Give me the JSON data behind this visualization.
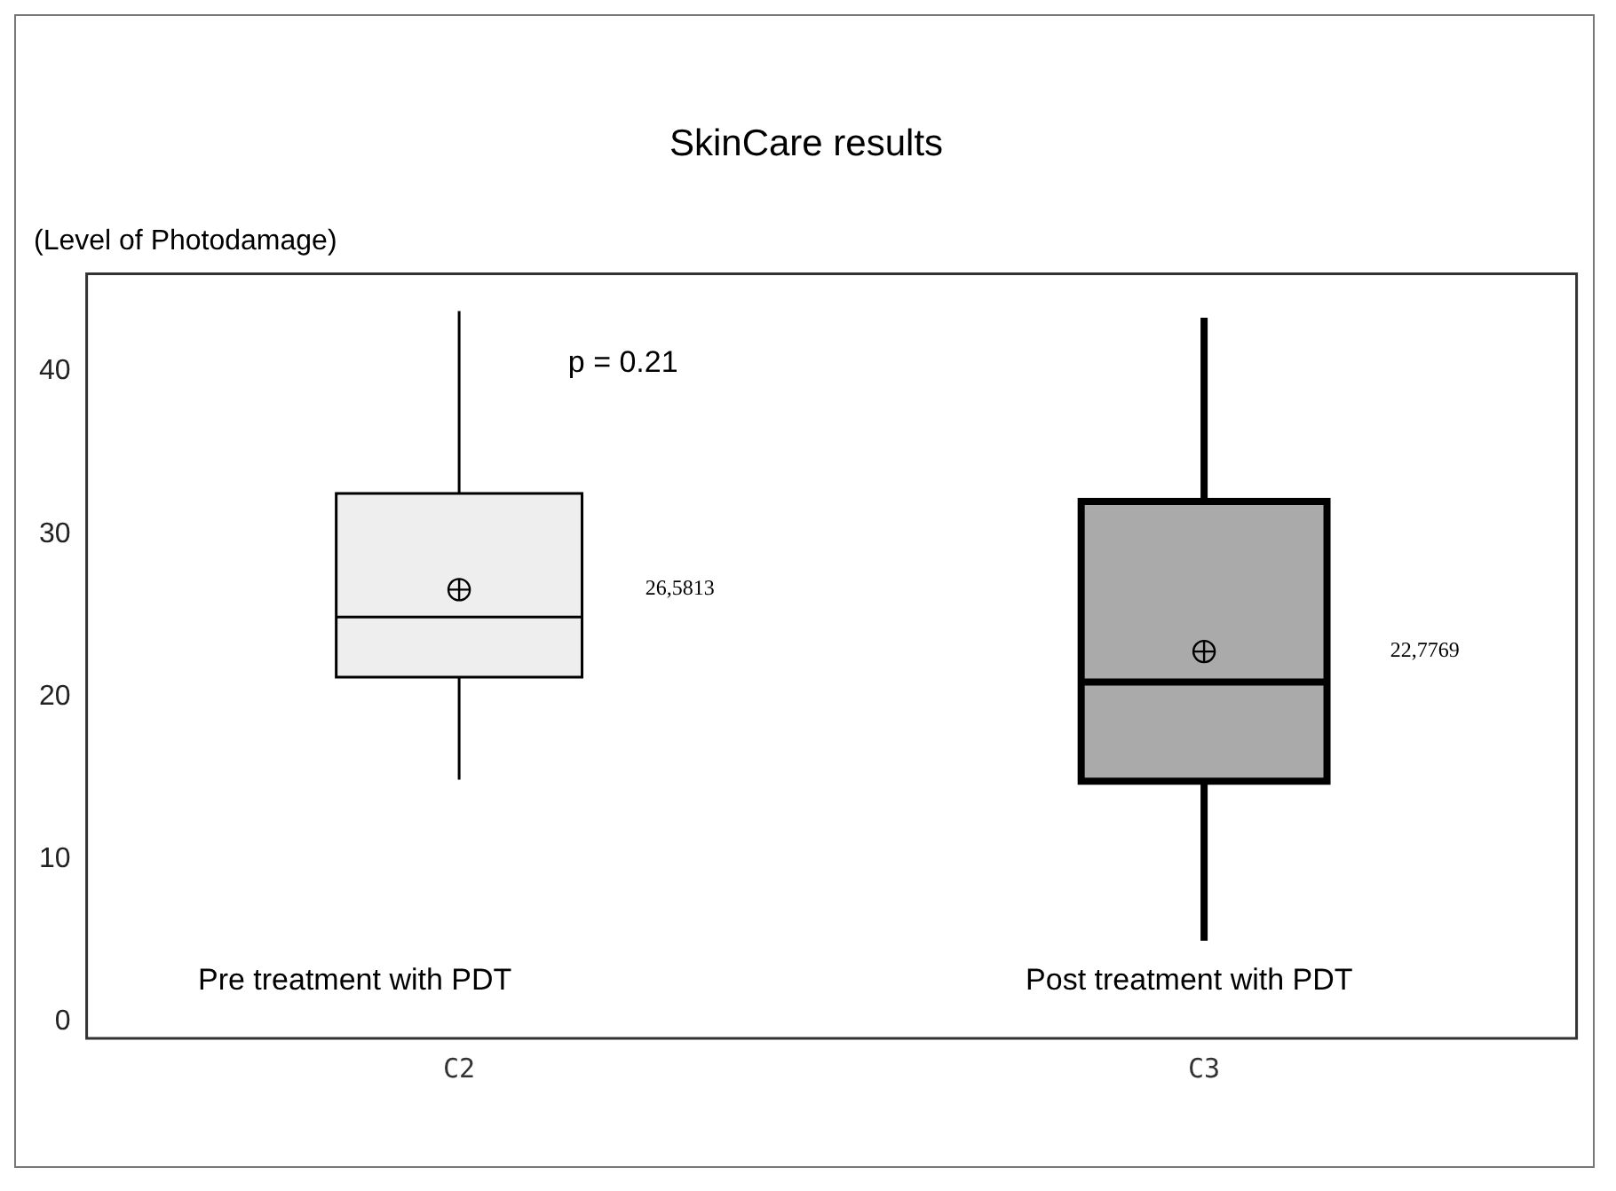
{
  "chart_data": {
    "type": "box",
    "title": "SkinCare results",
    "ylabel": "(Level of Photodamage)",
    "categories": [
      "C2",
      "C3"
    ],
    "boxes": [
      {
        "low": 14.9,
        "q1": 21.2,
        "median": 24.9,
        "q3": 32.5,
        "high": 43.7,
        "mean": 26.5813
      },
      {
        "low": 5.0,
        "q1": 14.8,
        "median": 20.9,
        "q3": 32.0,
        "high": 43.3,
        "mean": 22.7769
      }
    ],
    "colors": [
      "#eeeeee",
      "#aaaaaa"
    ],
    "ylim": [
      -1,
      46
    ],
    "yticks": [
      0,
      10,
      20,
      30,
      40
    ],
    "grid": false,
    "legend": false,
    "marker": "circle",
    "annotations": [
      "p = 0.21",
      "26,5813",
      "22,7769",
      "Pre treatment with PDT",
      "Post treatment with PDT"
    ]
  }
}
